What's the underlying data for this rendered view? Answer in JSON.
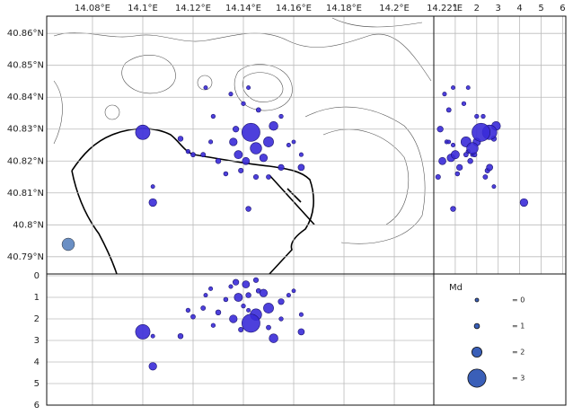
{
  "map": {
    "lonlim": [
      14.0618,
      14.2157
    ],
    "latlim": [
      40.7846,
      40.8654
    ],
    "lonticks": [
      {
        "value": 14.08,
        "label": "14.08°E"
      },
      {
        "value": 14.1,
        "label": "14.1°E"
      },
      {
        "value": 14.12,
        "label": "14.12°E"
      },
      {
        "value": 14.14,
        "label": "14.14°E"
      },
      {
        "value": 14.16,
        "label": "14.16°E"
      },
      {
        "value": 14.18,
        "label": "14.18°E"
      },
      {
        "value": 14.2,
        "label": "14.2°E"
      },
      {
        "value": 14.22,
        "label": "14.22°E"
      }
    ],
    "latticks": [
      {
        "value": 40.86,
        "label": "40.86°N"
      },
      {
        "value": 40.85,
        "label": "40.85°N"
      },
      {
        "value": 40.84,
        "label": "40.84°N"
      },
      {
        "value": 40.83,
        "label": "40.83°N"
      },
      {
        "value": 40.82,
        "label": "40.82°N"
      },
      {
        "value": 40.81,
        "label": "40.81°N"
      },
      {
        "value": 40.8,
        "label": "40.8°N"
      },
      {
        "value": 40.79,
        "label": "40.79°N"
      }
    ]
  },
  "depth_lat": {
    "xlim": [
      0,
      6.15
    ],
    "xticks": [
      1,
      2,
      3,
      4,
      5,
      6
    ]
  },
  "depth_lon": {
    "ylim": [
      0,
      6
    ],
    "yticks": [
      0,
      1,
      2,
      3,
      4,
      5,
      6
    ]
  },
  "legend": {
    "title": "Md",
    "items": [
      {
        "md": 0,
        "label": "= 0"
      },
      {
        "md": 1,
        "label": "= 1"
      },
      {
        "md": 2,
        "label": "= 2"
      },
      {
        "md": 3,
        "label": "= 3"
      }
    ]
  },
  "events": [
    {
      "lon": 14.143,
      "lat": 40.829,
      "depth": 2.2,
      "md": 3.0
    },
    {
      "lon": 14.1,
      "lat": 40.829,
      "depth": 2.6,
      "md": 2.6
    },
    {
      "lon": 14.145,
      "lat": 40.824,
      "depth": 1.8,
      "md": 2.2
    },
    {
      "lon": 14.15,
      "lat": 40.826,
      "depth": 1.5,
      "md": 2.0
    },
    {
      "lon": 14.152,
      "lat": 40.831,
      "depth": 2.9,
      "md": 1.8
    },
    {
      "lon": 14.138,
      "lat": 40.822,
      "depth": 1.0,
      "md": 1.7
    },
    {
      "lon": 14.148,
      "lat": 40.821,
      "depth": 0.8,
      "md": 1.6
    },
    {
      "lon": 14.141,
      "lat": 40.82,
      "depth": 0.4,
      "md": 1.5
    },
    {
      "lon": 14.136,
      "lat": 40.826,
      "depth": 2.0,
      "md": 1.6
    },
    {
      "lon": 14.104,
      "lat": 40.807,
      "depth": 4.2,
      "md": 1.6
    },
    {
      "lon": 14.142,
      "lat": 40.805,
      "depth": 0.9,
      "md": 1.0
    },
    {
      "lon": 14.163,
      "lat": 40.818,
      "depth": 2.6,
      "md": 1.3
    },
    {
      "lon": 14.155,
      "lat": 40.818,
      "depth": 1.2,
      "md": 1.2
    },
    {
      "lon": 14.13,
      "lat": 40.82,
      "depth": 1.7,
      "md": 1.0
    },
    {
      "lon": 14.12,
      "lat": 40.822,
      "depth": 1.9,
      "md": 0.8
    },
    {
      "lon": 14.115,
      "lat": 40.827,
      "depth": 2.8,
      "md": 1.0
    },
    {
      "lon": 14.146,
      "lat": 40.836,
      "depth": 0.7,
      "md": 0.8
    },
    {
      "lon": 14.14,
      "lat": 40.838,
      "depth": 1.4,
      "md": 0.6
    },
    {
      "lon": 14.135,
      "lat": 40.841,
      "depth": 0.5,
      "md": 0.5
    },
    {
      "lon": 14.125,
      "lat": 40.843,
      "depth": 0.9,
      "md": 0.4
    },
    {
      "lon": 14.142,
      "lat": 40.843,
      "depth": 1.6,
      "md": 0.4
    },
    {
      "lon": 14.128,
      "lat": 40.834,
      "depth": 2.3,
      "md": 0.6
    },
    {
      "lon": 14.104,
      "lat": 40.812,
      "depth": 2.8,
      "md": 0.4
    },
    {
      "lon": 14.158,
      "lat": 40.825,
      "depth": 0.9,
      "md": 0.5
    },
    {
      "lon": 14.133,
      "lat": 40.816,
      "depth": 1.1,
      "md": 0.7
    },
    {
      "lon": 14.15,
      "lat": 40.815,
      "depth": 2.4,
      "md": 0.8
    },
    {
      "lon": 14.124,
      "lat": 40.822,
      "depth": 1.5,
      "md": 0.8
    },
    {
      "lon": 14.16,
      "lat": 40.826,
      "depth": 0.7,
      "md": 0.3
    },
    {
      "lon": 14.137,
      "lat": 40.83,
      "depth": 0.3,
      "md": 1.2
    },
    {
      "lon": 14.139,
      "lat": 40.817,
      "depth": 2.5,
      "md": 0.9
    },
    {
      "lon": 14.163,
      "lat": 40.822,
      "depth": 1.8,
      "md": 0.5
    },
    {
      "lon": 14.127,
      "lat": 40.826,
      "depth": 0.6,
      "md": 0.5
    },
    {
      "lon": 14.155,
      "lat": 40.834,
      "depth": 2.0,
      "md": 0.6
    },
    {
      "lon": 14.145,
      "lat": 40.815,
      "depth": 0.2,
      "md": 0.9
    },
    {
      "lon": 14.118,
      "lat": 40.823,
      "depth": 1.6,
      "md": 0.6
    }
  ]
}
